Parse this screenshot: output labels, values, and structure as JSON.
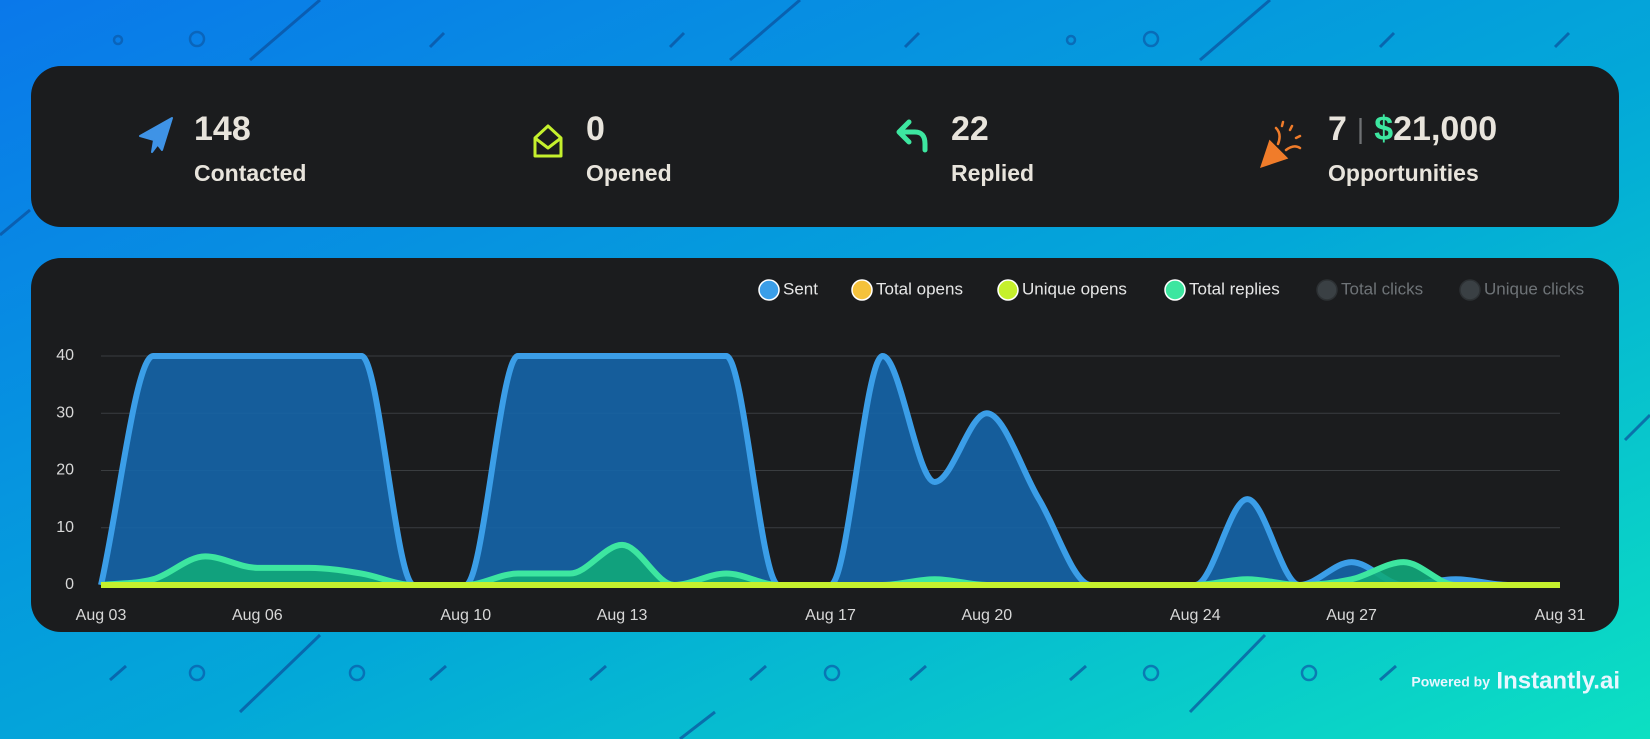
{
  "stats": [
    {
      "value": "148",
      "label": "Contacted"
    },
    {
      "value": "0",
      "label": "Opened"
    },
    {
      "value": "22",
      "label": "Replied"
    },
    {
      "value": "7",
      "separator": "|",
      "currency": "$",
      "amount": "21,000",
      "label": "Opportunities"
    }
  ],
  "chart_data": {
    "type": "area",
    "categories": [
      "Aug 03",
      null,
      null,
      "Aug 06",
      null,
      null,
      null,
      "Aug 10",
      null,
      null,
      "Aug 13",
      null,
      null,
      null,
      "Aug 17",
      null,
      null,
      "Aug 20",
      null,
      null,
      null,
      "Aug 24",
      null,
      null,
      "Aug 27",
      null,
      null,
      null,
      "Aug 31"
    ],
    "series": [
      {
        "name": "Sent",
        "color": "#3b9ee8",
        "fill_color": "#1565a8",
        "values": [
          0,
          40,
          40,
          40,
          40,
          40,
          0,
          0,
          40,
          40,
          40,
          40,
          40,
          0,
          0,
          40,
          18,
          30,
          15,
          0,
          0,
          0,
          15,
          0,
          4,
          0,
          1,
          0,
          0
        ]
      },
      {
        "name": "Total opens",
        "color": "#f5c23c",
        "values": [
          0,
          0,
          0,
          0,
          0,
          0,
          0,
          0,
          0,
          0,
          0,
          0,
          0,
          0,
          0,
          0,
          0,
          0,
          0,
          0,
          0,
          0,
          0,
          0,
          0,
          0,
          0,
          0,
          0
        ]
      },
      {
        "name": "Unique opens",
        "color": "#c5f02d",
        "values": [
          0,
          0,
          0,
          0,
          0,
          0,
          0,
          0,
          0,
          0,
          0,
          0,
          0,
          0,
          0,
          0,
          0,
          0,
          0,
          0,
          0,
          0,
          0,
          0,
          0,
          0,
          0,
          0,
          0
        ]
      },
      {
        "name": "Total replies",
        "color": "#3de6a0",
        "fill_color": "#11a87a",
        "values": [
          0,
          1,
          5,
          3,
          3,
          2,
          0,
          0,
          2,
          2,
          7,
          0,
          2,
          0,
          0,
          0,
          1,
          0,
          0,
          0,
          0,
          0,
          1,
          0,
          1,
          4,
          0,
          0,
          0
        ]
      },
      {
        "name": "Total clicks",
        "color": "#3a4044",
        "hidden": true
      },
      {
        "name": "Unique clicks",
        "color": "#3a4044",
        "hidden": true
      }
    ],
    "ylim": [
      0,
      40
    ],
    "yticks": [
      0,
      10,
      20,
      30,
      40
    ],
    "grid": true,
    "legend": "top-right"
  },
  "footer": {
    "powered": "Powered by",
    "brand": "Instantly.ai"
  }
}
